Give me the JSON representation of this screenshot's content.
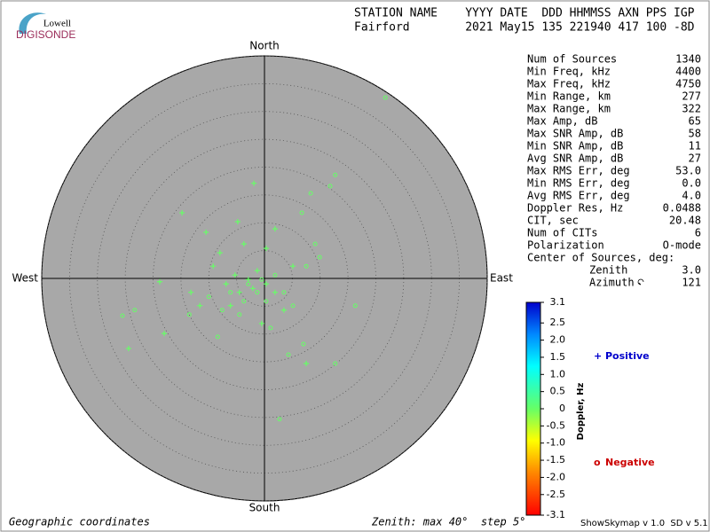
{
  "logo": {
    "top": "Lowell",
    "bottom": "DIGISONDE"
  },
  "header": {
    "labels": "STATION NAME    YYYY DATE  DDD HHMMSS AXN PPS IGP",
    "values": "Fairford        2021 May15 135 221940 417 100 -8D"
  },
  "stats": {
    "rows": [
      [
        "Num of Sources",
        1340
      ],
      [
        "Min Freq, kHz",
        4400
      ],
      [
        "Max Freq, kHz",
        4750
      ],
      [
        "Min Range, km",
        277
      ],
      [
        "Max Range, km",
        322
      ],
      [
        "Max Amp, dB",
        65
      ],
      [
        "Max SNR Amp, dB",
        58
      ],
      [
        "Min SNR Amp, dB",
        11
      ],
      [
        "Avg SNR Amp, dB",
        27
      ],
      [
        "Max RMS Err, deg",
        "53.0"
      ],
      [
        "Min RMS Err, deg",
        "0.0"
      ],
      [
        "Avg RMS Err, deg",
        "4.0"
      ],
      [
        "Doppler Res, Hz",
        0.0488
      ],
      [
        "CIT, sec",
        20.48
      ],
      [
        "Num of CITs",
        6
      ],
      [
        "Polarization",
        "O-mode"
      ]
    ],
    "center_title": "Center of Sources, deg:",
    "center_rows": [
      [
        "Zenith",
        "3.0"
      ],
      [
        "Azimuth",
        121
      ]
    ]
  },
  "chart_data": {
    "type": "skymap",
    "directions": {
      "north": "North",
      "south": "South",
      "east": "East",
      "west": "West"
    },
    "rlim": [
      0,
      40
    ],
    "rticks": [
      5,
      10,
      15,
      20,
      25,
      30,
      35,
      40
    ],
    "point_color": "#66ff66",
    "series": [
      {
        "name": "Positive",
        "marker": "+",
        "color": "#0000cc",
        "x": [
          -14.8,
          -10.5,
          -4.8,
          -1.9,
          -24.4,
          -18.0,
          -9.2,
          -6.9,
          -4.5,
          -2.9,
          -1.3,
          0.3,
          1.9,
          3.5,
          7.5,
          -13.2,
          -6.1,
          -0.5,
          5.1,
          -8.0,
          -3.7,
          0.3,
          1.9,
          -18.8,
          -11.6,
          -5.3,
          -2.1
        ],
        "y": [
          11.8,
          8.3,
          10.2,
          17.1,
          -12.6,
          -9.9,
          2.2,
          -1.0,
          -2.5,
          -0.2,
          1.4,
          -1.0,
          -2.5,
          -5.7,
          -15.3,
          -2.5,
          -4.9,
          -8.1,
          2.2,
          4.6,
          6.2,
          5.4,
          8.9,
          -0.6,
          -4.9,
          0.6,
          -1.8
        ]
      },
      {
        "name": "Negative",
        "marker": "o",
        "color": "#cc0000",
        "x": [
          21.7,
          11.8,
          12.7,
          8.3,
          6.7,
          9.1,
          9.9,
          2.7,
          12.7,
          4.3,
          7.0,
          -25.5,
          -23.3,
          -13.5,
          -8.4,
          0.3,
          3.5,
          -1.3,
          -3.7,
          -6.1,
          -2.9,
          -0.5,
          1.9,
          -7.6,
          -10.0,
          5.1,
          16.3,
          7.5,
          -4.5,
          1.1
        ],
        "y": [
          32.5,
          16.6,
          18.6,
          15.3,
          11.8,
          6.2,
          3.8,
          -25.3,
          -15.3,
          -13.7,
          -11.8,
          -6.7,
          -5.7,
          -6.5,
          -10.5,
          -4.1,
          -2.5,
          -2.5,
          -4.1,
          -2.5,
          -1.0,
          -0.2,
          0.6,
          -5.7,
          -3.3,
          -4.9,
          -4.9,
          2.2,
          -6.5,
          -8.9
        ]
      }
    ],
    "colorbar": {
      "label": "Doppler, Hz",
      "lim": [
        -3.1,
        3.1
      ],
      "ticks": [
        3.1,
        2.5,
        {
          "value": 2,
          "label": "2.0"
        },
        1.5,
        {
          "value": 1,
          "label": "1.0"
        },
        0.5,
        0,
        -0.5,
        {
          "value": -1,
          "label": "-1.0"
        },
        -1.5,
        {
          "value": -2,
          "label": "-2.0"
        },
        -2.5,
        -3.1
      ]
    }
  },
  "footer": {
    "left": "Geographic coordinates",
    "middle": "Zenith: max 40°  step 5°",
    "right": "ShowSkymap v 1.0  SD v 5.1"
  }
}
